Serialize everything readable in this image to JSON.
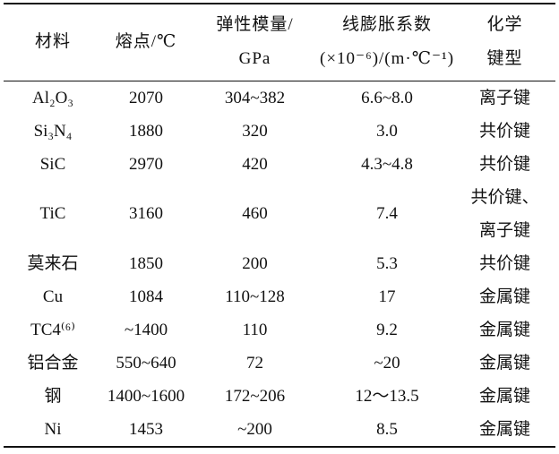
{
  "table": {
    "header": [
      "材料",
      "熔点/℃",
      "弹性模量/\nGPa",
      "线膨胀系数\n(×10⁻⁶)/(m·℃⁻¹)",
      "化学\n键型"
    ],
    "rows": [
      [
        "Al₂O₃",
        "2070",
        "304~382",
        "6.6~8.0",
        "离子键"
      ],
      [
        "Si₃N₄",
        "1880",
        "320",
        "3.0",
        "共价键"
      ],
      [
        "SiC",
        "2970",
        "420",
        "4.3~4.8",
        "共价键"
      ],
      [
        "TiC",
        "3160",
        "460",
        "7.4",
        "共价键、\n离子键"
      ],
      [
        "莫来石",
        "1850",
        "200",
        "5.3",
        "共价键"
      ],
      [
        "Cu",
        "1084",
        "110~128",
        "17",
        "金属键"
      ],
      [
        "TC4⁽⁶⁾",
        "~1400",
        "110",
        "9.2",
        "金属键"
      ],
      [
        "铝合金",
        "550~640",
        "72",
        "~20",
        "金属键"
      ],
      [
        "钢",
        "1400~1600",
        "172~206",
        "12～13.5",
        "金属键"
      ],
      [
        "Ni",
        "1453",
        "~200",
        "8.5",
        "金属键"
      ]
    ]
  }
}
